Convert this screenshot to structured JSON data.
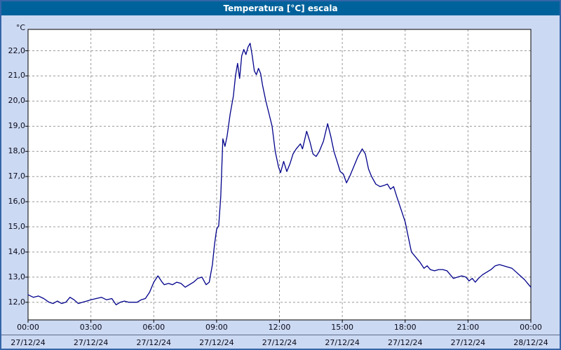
{
  "window": {
    "title": "Temperatura [°C] escala"
  },
  "colors": {
    "titlebar_bg": "#00629b",
    "page_bg": "#ccd9f2",
    "plot_bg": "#ffffff",
    "line": "#00008b",
    "grid": "#999999",
    "frame": "#000000",
    "outer_border": "#3465a8"
  },
  "chart_data": {
    "type": "line",
    "title": "Temperatura [°C] escala",
    "y_unit_label": "°C",
    "xlim": [
      0,
      24
    ],
    "ylim": [
      11.3,
      22.85
    ],
    "grid": "dashed",
    "legend": "none",
    "y_ticks": [
      {
        "v": 12,
        "label": "12,0"
      },
      {
        "v": 13,
        "label": "13,0"
      },
      {
        "v": 14,
        "label": "14,0"
      },
      {
        "v": 15,
        "label": "15,0"
      },
      {
        "v": 16,
        "label": "16,0"
      },
      {
        "v": 17,
        "label": "17,0"
      },
      {
        "v": 18,
        "label": "18,0"
      },
      {
        "v": 19,
        "label": "19,0"
      },
      {
        "v": 20,
        "label": "20,0"
      },
      {
        "v": 21,
        "label": "21,0"
      },
      {
        "v": 22,
        "label": "22,0"
      }
    ],
    "x_ticks": [
      {
        "h": 0,
        "time": "00:00",
        "date": "27/12/24"
      },
      {
        "h": 3,
        "time": "03:00",
        "date": "27/12/24"
      },
      {
        "h": 6,
        "time": "06:00",
        "date": "27/12/24"
      },
      {
        "h": 9,
        "time": "09:00",
        "date": "27/12/24"
      },
      {
        "h": 12,
        "time": "12:00",
        "date": "27/12/24"
      },
      {
        "h": 15,
        "time": "15:00",
        "date": "27/12/24"
      },
      {
        "h": 18,
        "time": "18:00",
        "date": "27/12/24"
      },
      {
        "h": 21,
        "time": "21:00",
        "date": "27/12/24"
      },
      {
        "h": 24,
        "time": "00:00",
        "date": "28/12/24"
      }
    ],
    "series": [
      {
        "name": "Temperatura",
        "color": "#00008b",
        "points": [
          [
            0,
            12.3
          ],
          [
            0.25,
            12.2
          ],
          [
            0.5,
            12.25
          ],
          [
            0.75,
            12.15
          ],
          [
            1,
            12.0
          ],
          [
            1.2,
            11.95
          ],
          [
            1.4,
            12.05
          ],
          [
            1.6,
            11.95
          ],
          [
            1.8,
            12.0
          ],
          [
            2,
            12.2
          ],
          [
            2.2,
            12.1
          ],
          [
            2.4,
            11.95
          ],
          [
            2.6,
            12.0
          ],
          [
            2.8,
            12.05
          ],
          [
            3,
            12.1
          ],
          [
            3.25,
            12.15
          ],
          [
            3.5,
            12.2
          ],
          [
            3.75,
            12.1
          ],
          [
            4,
            12.15
          ],
          [
            4.2,
            11.9
          ],
          [
            4.4,
            12.0
          ],
          [
            4.6,
            12.05
          ],
          [
            4.8,
            12.0
          ],
          [
            5,
            12.0
          ],
          [
            5.2,
            12.0
          ],
          [
            5.4,
            12.1
          ],
          [
            5.6,
            12.15
          ],
          [
            5.8,
            12.4
          ],
          [
            6,
            12.8
          ],
          [
            6.2,
            13.05
          ],
          [
            6.4,
            12.8
          ],
          [
            6.5,
            12.7
          ],
          [
            6.7,
            12.75
          ],
          [
            6.9,
            12.7
          ],
          [
            7.1,
            12.8
          ],
          [
            7.3,
            12.75
          ],
          [
            7.5,
            12.6
          ],
          [
            7.7,
            12.7
          ],
          [
            7.9,
            12.8
          ],
          [
            8.1,
            12.95
          ],
          [
            8.3,
            13.0
          ],
          [
            8.5,
            12.7
          ],
          [
            8.65,
            12.8
          ],
          [
            8.8,
            13.5
          ],
          [
            8.9,
            14.3
          ],
          [
            9.0,
            14.9
          ],
          [
            9.1,
            15.05
          ],
          [
            9.2,
            16.2
          ],
          [
            9.3,
            18.5
          ],
          [
            9.4,
            18.2
          ],
          [
            9.5,
            18.6
          ],
          [
            9.65,
            19.5
          ],
          [
            9.8,
            20.2
          ],
          [
            9.9,
            21.0
          ],
          [
            10.0,
            21.5
          ],
          [
            10.1,
            20.9
          ],
          [
            10.2,
            21.8
          ],
          [
            10.3,
            22.05
          ],
          [
            10.4,
            21.85
          ],
          [
            10.5,
            22.15
          ],
          [
            10.6,
            22.3
          ],
          [
            10.7,
            21.8
          ],
          [
            10.8,
            21.2
          ],
          [
            10.9,
            21.05
          ],
          [
            11.0,
            21.3
          ],
          [
            11.1,
            21.1
          ],
          [
            11.2,
            20.6
          ],
          [
            11.35,
            20.0
          ],
          [
            11.5,
            19.5
          ],
          [
            11.65,
            19.0
          ],
          [
            11.8,
            18.0
          ],
          [
            11.95,
            17.4
          ],
          [
            12.05,
            17.15
          ],
          [
            12.2,
            17.6
          ],
          [
            12.35,
            17.2
          ],
          [
            12.5,
            17.5
          ],
          [
            12.65,
            17.9
          ],
          [
            12.8,
            18.1
          ],
          [
            13.0,
            18.3
          ],
          [
            13.1,
            18.1
          ],
          [
            13.3,
            18.8
          ],
          [
            13.45,
            18.4
          ],
          [
            13.6,
            17.9
          ],
          [
            13.75,
            17.8
          ],
          [
            13.9,
            18.0
          ],
          [
            14.1,
            18.4
          ],
          [
            14.3,
            19.1
          ],
          [
            14.45,
            18.6
          ],
          [
            14.6,
            18.0
          ],
          [
            14.75,
            17.6
          ],
          [
            14.9,
            17.2
          ],
          [
            15.05,
            17.1
          ],
          [
            15.2,
            16.75
          ],
          [
            15.35,
            17.0
          ],
          [
            15.55,
            17.4
          ],
          [
            15.75,
            17.8
          ],
          [
            15.95,
            18.1
          ],
          [
            16.1,
            17.9
          ],
          [
            16.25,
            17.3
          ],
          [
            16.4,
            17.0
          ],
          [
            16.6,
            16.7
          ],
          [
            16.8,
            16.6
          ],
          [
            17.0,
            16.65
          ],
          [
            17.15,
            16.7
          ],
          [
            17.3,
            16.5
          ],
          [
            17.45,
            16.6
          ],
          [
            17.6,
            16.2
          ],
          [
            17.8,
            15.7
          ],
          [
            18.0,
            15.2
          ],
          [
            18.15,
            14.6
          ],
          [
            18.3,
            14.0
          ],
          [
            18.5,
            13.8
          ],
          [
            18.7,
            13.6
          ],
          [
            18.9,
            13.35
          ],
          [
            19.05,
            13.45
          ],
          [
            19.2,
            13.3
          ],
          [
            19.4,
            13.25
          ],
          [
            19.6,
            13.3
          ],
          [
            19.8,
            13.3
          ],
          [
            20.0,
            13.25
          ],
          [
            20.15,
            13.1
          ],
          [
            20.3,
            12.95
          ],
          [
            20.5,
            13.0
          ],
          [
            20.7,
            13.05
          ],
          [
            20.9,
            13.0
          ],
          [
            21.05,
            12.85
          ],
          [
            21.2,
            12.95
          ],
          [
            21.35,
            12.8
          ],
          [
            21.5,
            12.95
          ],
          [
            21.7,
            13.1
          ],
          [
            21.9,
            13.2
          ],
          [
            22.1,
            13.3
          ],
          [
            22.3,
            13.45
          ],
          [
            22.5,
            13.5
          ],
          [
            22.7,
            13.45
          ],
          [
            22.9,
            13.4
          ],
          [
            23.1,
            13.35
          ],
          [
            23.3,
            13.2
          ],
          [
            23.5,
            13.05
          ],
          [
            23.7,
            12.9
          ],
          [
            23.85,
            12.75
          ],
          [
            24,
            12.6
          ]
        ]
      }
    ]
  }
}
